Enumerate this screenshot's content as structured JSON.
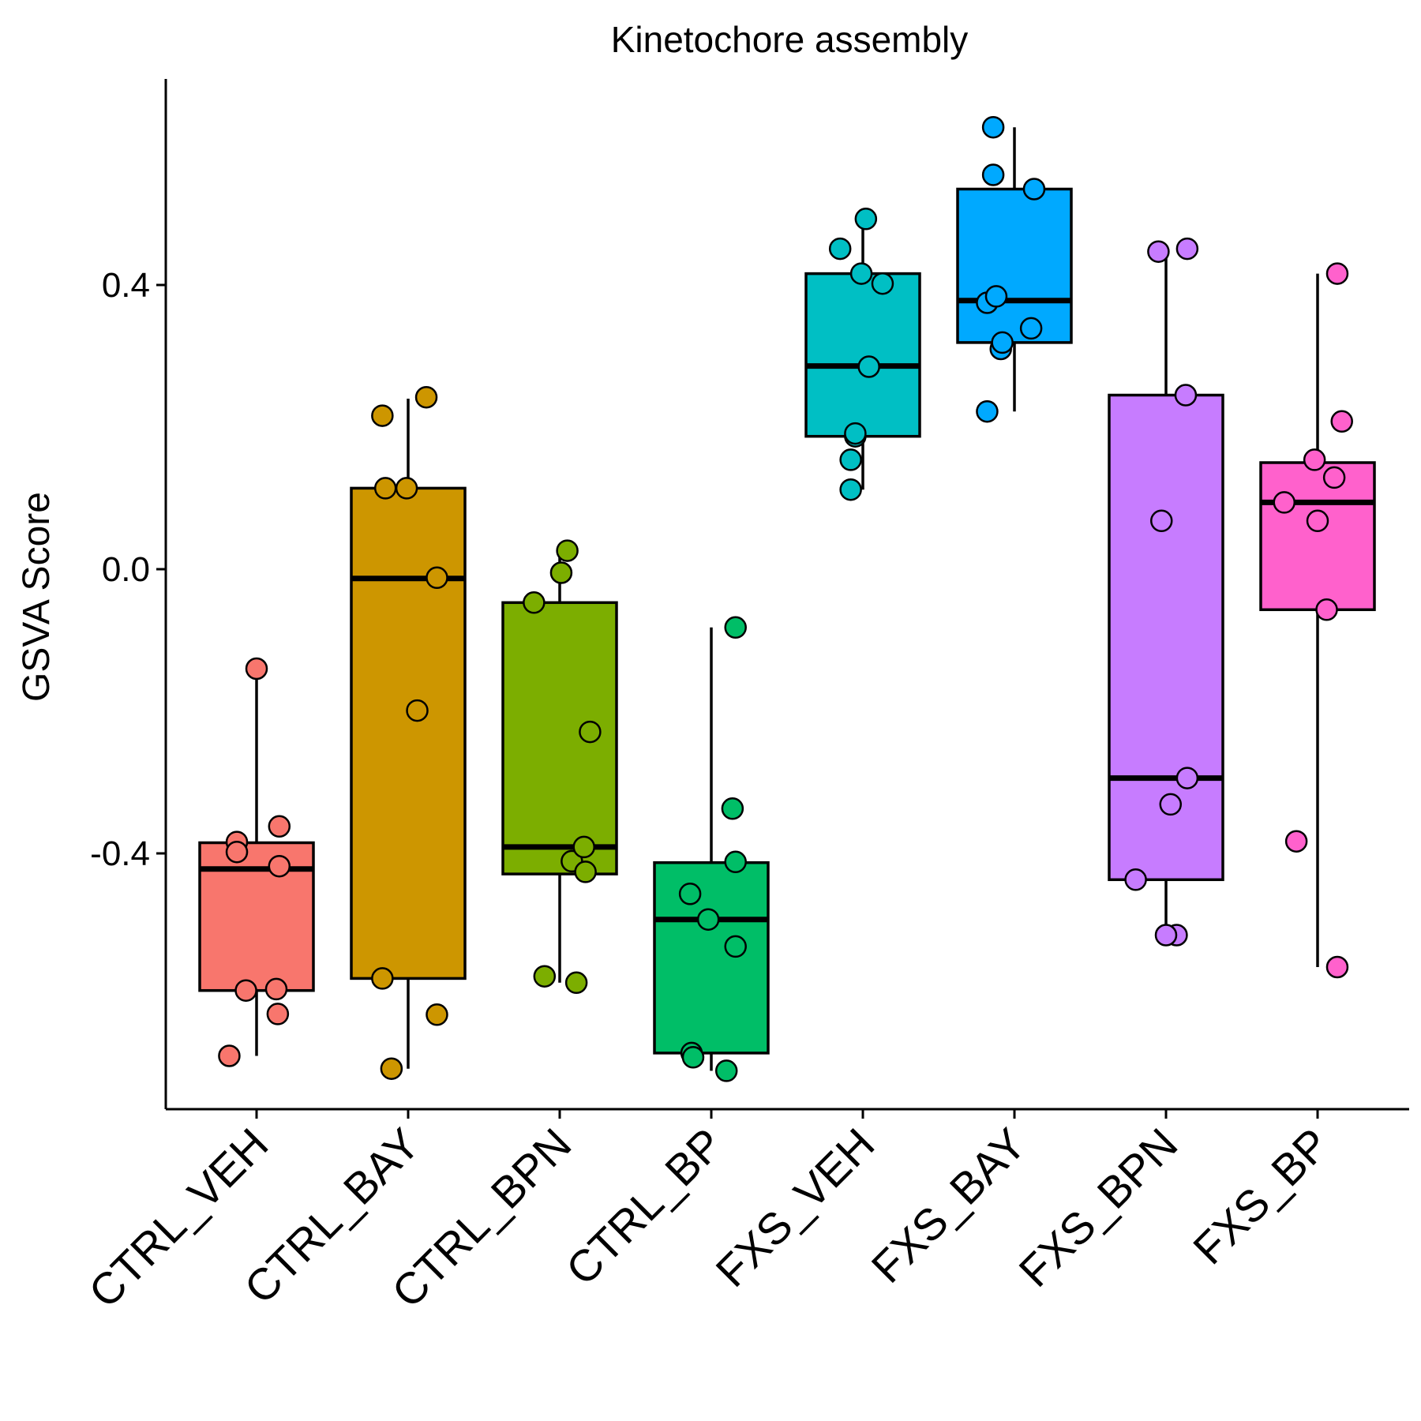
{
  "chart_data": {
    "type": "box",
    "title": "Kinetochore assembly",
    "xlabel": "",
    "ylabel": "GSVA Score",
    "ylim": [
      -0.76,
      0.69
    ],
    "yticks": [
      {
        "value": 0.4,
        "label": "0.4"
      },
      {
        "value": 0.0,
        "label": "0.0"
      },
      {
        "value": -0.4,
        "label": "-0.4"
      }
    ],
    "grid": false,
    "legend": "none",
    "categories": [
      "CTRL_VEH",
      "CTRL_BAY",
      "CTRL_BPN",
      "CTRL_BP",
      "FXS_VEH",
      "FXS_BAY",
      "FXS_BPN",
      "FXS_BP"
    ],
    "colors": [
      "#F8766D",
      "#CD9600",
      "#7CAE00",
      "#00BE67",
      "#00BFC4",
      "#00A9FF",
      "#C77CFF",
      "#FF61CC"
    ],
    "boxes": [
      {
        "whisker_low": -0.685,
        "q1": -0.593,
        "median": -0.422,
        "q3": -0.385,
        "whisker_high": -0.14
      },
      {
        "whisker_low": -0.703,
        "q1": -0.576,
        "median": -0.013,
        "q3": 0.114,
        "whisker_high": 0.24
      },
      {
        "whisker_low": -0.582,
        "q1": -0.429,
        "median": -0.391,
        "q3": -0.047,
        "whisker_high": 0.026
      },
      {
        "whisker_low": -0.706,
        "q1": -0.681,
        "median": -0.493,
        "q3": -0.413,
        "whisker_high": -0.082
      },
      {
        "whisker_low": 0.112,
        "q1": 0.187,
        "median": 0.286,
        "q3": 0.416,
        "whisker_high": 0.495
      },
      {
        "whisker_low": 0.222,
        "q1": 0.319,
        "median": 0.378,
        "q3": 0.535,
        "whisker_high": 0.622
      },
      {
        "whisker_low": -0.515,
        "q1": -0.437,
        "median": -0.294,
        "q3": 0.245,
        "whisker_high": 0.452
      },
      {
        "whisker_low": -0.56,
        "q1": -0.057,
        "median": 0.094,
        "q3": 0.15,
        "whisker_high": 0.416
      }
    ],
    "points": [
      [
        {
          "x": -0.18,
          "y": -0.685
        },
        {
          "x": -0.07,
          "y": -0.593
        },
        {
          "x": 0.13,
          "y": -0.591
        },
        {
          "x": 0.14,
          "y": -0.626
        },
        {
          "x": -0.13,
          "y": -0.384
        },
        {
          "x": -0.13,
          "y": -0.398
        },
        {
          "x": 0.15,
          "y": -0.362
        },
        {
          "x": 0.15,
          "y": -0.418
        },
        {
          "x": 0.0,
          "y": -0.14
        }
      ],
      [
        {
          "x": -0.17,
          "y": -0.576
        },
        {
          "x": -0.11,
          "y": -0.703
        },
        {
          "x": 0.19,
          "y": -0.627
        },
        {
          "x": 0.06,
          "y": -0.199
        },
        {
          "x": 0.19,
          "y": -0.012
        },
        {
          "x": -0.15,
          "y": 0.114
        },
        {
          "x": -0.01,
          "y": 0.114
        },
        {
          "x": -0.17,
          "y": 0.216
        },
        {
          "x": 0.12,
          "y": 0.242
        }
      ],
      [
        {
          "x": -0.1,
          "y": -0.573
        },
        {
          "x": 0.11,
          "y": -0.582
        },
        {
          "x": 0.08,
          "y": -0.411
        },
        {
          "x": 0.17,
          "y": -0.426
        },
        {
          "x": 0.16,
          "y": -0.391
        },
        {
          "x": 0.2,
          "y": -0.229
        },
        {
          "x": -0.17,
          "y": -0.047
        },
        {
          "x": 0.01,
          "y": -0.005
        },
        {
          "x": 0.05,
          "y": 0.026
        }
      ],
      [
        {
          "x": -0.13,
          "y": -0.681
        },
        {
          "x": -0.12,
          "y": -0.687
        },
        {
          "x": 0.1,
          "y": -0.706
        },
        {
          "x": -0.14,
          "y": -0.457
        },
        {
          "x": -0.02,
          "y": -0.493
        },
        {
          "x": 0.16,
          "y": -0.531
        },
        {
          "x": 0.16,
          "y": -0.412
        },
        {
          "x": 0.14,
          "y": -0.337
        },
        {
          "x": 0.16,
          "y": -0.082
        }
      ],
      [
        {
          "x": -0.08,
          "y": 0.112
        },
        {
          "x": -0.08,
          "y": 0.154
        },
        {
          "x": -0.05,
          "y": 0.187
        },
        {
          "x": -0.05,
          "y": 0.191
        },
        {
          "x": 0.04,
          "y": 0.285
        },
        {
          "x": -0.01,
          "y": 0.416
        },
        {
          "x": 0.13,
          "y": 0.402
        },
        {
          "x": -0.15,
          "y": 0.451
        },
        {
          "x": 0.02,
          "y": 0.493
        }
      ],
      [
        {
          "x": -0.18,
          "y": 0.222
        },
        {
          "x": -0.09,
          "y": 0.31
        },
        {
          "x": -0.08,
          "y": 0.319
        },
        {
          "x": 0.11,
          "y": 0.339
        },
        {
          "x": -0.18,
          "y": 0.375
        },
        {
          "x": -0.12,
          "y": 0.384
        },
        {
          "x": 0.13,
          "y": 0.535
        },
        {
          "x": -0.14,
          "y": 0.555
        },
        {
          "x": -0.14,
          "y": 0.622
        }
      ],
      [
        {
          "x": -0.2,
          "y": -0.437
        },
        {
          "x": 0.07,
          "y": -0.515
        },
        {
          "x": 0.0,
          "y": -0.515
        },
        {
          "x": 0.03,
          "y": -0.331
        },
        {
          "x": 0.14,
          "y": -0.294
        },
        {
          "x": -0.03,
          "y": 0.068
        },
        {
          "x": 0.13,
          "y": 0.245
        },
        {
          "x": -0.05,
          "y": 0.447
        },
        {
          "x": 0.14,
          "y": 0.451
        }
      ],
      [
        {
          "x": 0.13,
          "y": -0.56
        },
        {
          "x": -0.14,
          "y": -0.383
        },
        {
          "x": 0.06,
          "y": -0.057
        },
        {
          "x": 0.0,
          "y": 0.068
        },
        {
          "x": -0.22,
          "y": 0.094
        },
        {
          "x": -0.02,
          "y": 0.154
        },
        {
          "x": 0.11,
          "y": 0.129
        },
        {
          "x": 0.16,
          "y": 0.208
        },
        {
          "x": 0.13,
          "y": 0.416
        }
      ]
    ]
  }
}
